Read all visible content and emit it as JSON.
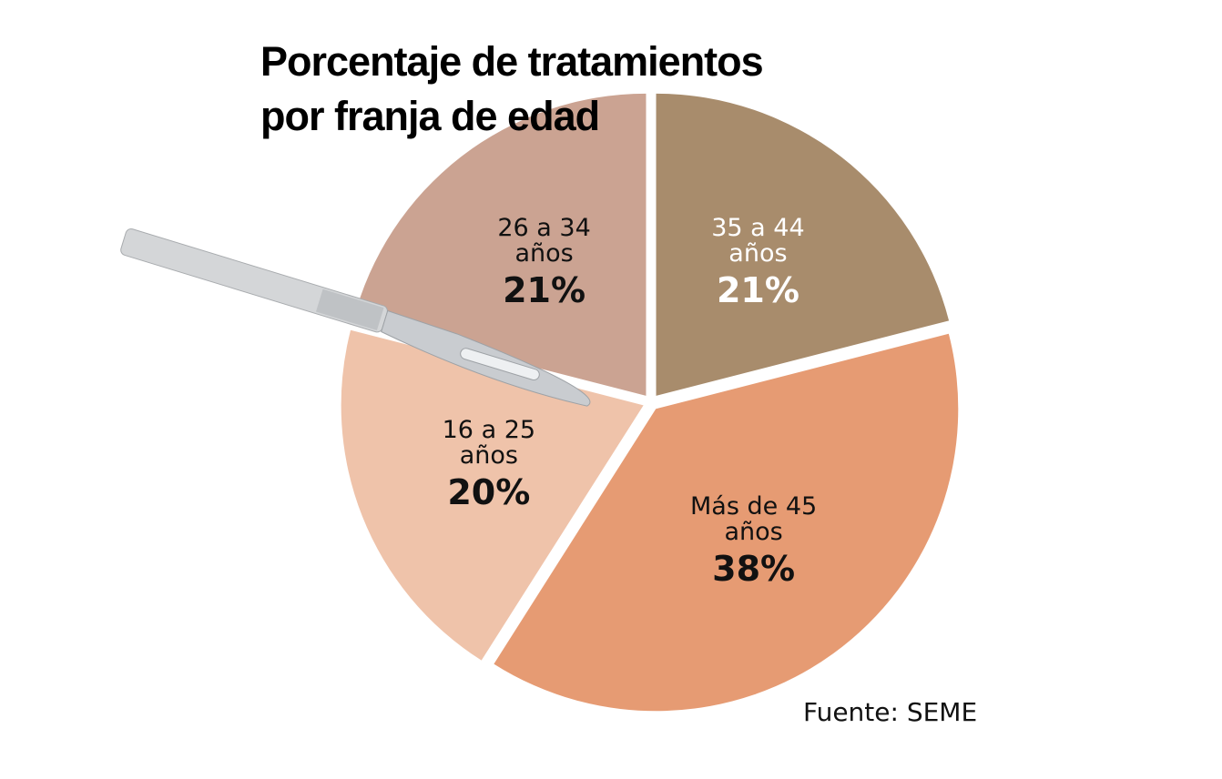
{
  "chart_data": {
    "type": "pie",
    "title": "Porcentaje de tratamientos por franja de edad",
    "categories": [
      "35 a 44 años",
      "Más de 45 años",
      "16 a 25 años",
      "26 a 34 años"
    ],
    "values": [
      21,
      38,
      20,
      21
    ],
    "value_labels": [
      "21%",
      "38%",
      "20%",
      "21%"
    ],
    "colors": [
      "#a88c6c",
      "#e69b73",
      "#efc3aa",
      "#cba392"
    ],
    "label_colors": [
      "#ffffff",
      "#111111",
      "#111111",
      "#111111"
    ],
    "source": "Fuente: SEME"
  }
}
